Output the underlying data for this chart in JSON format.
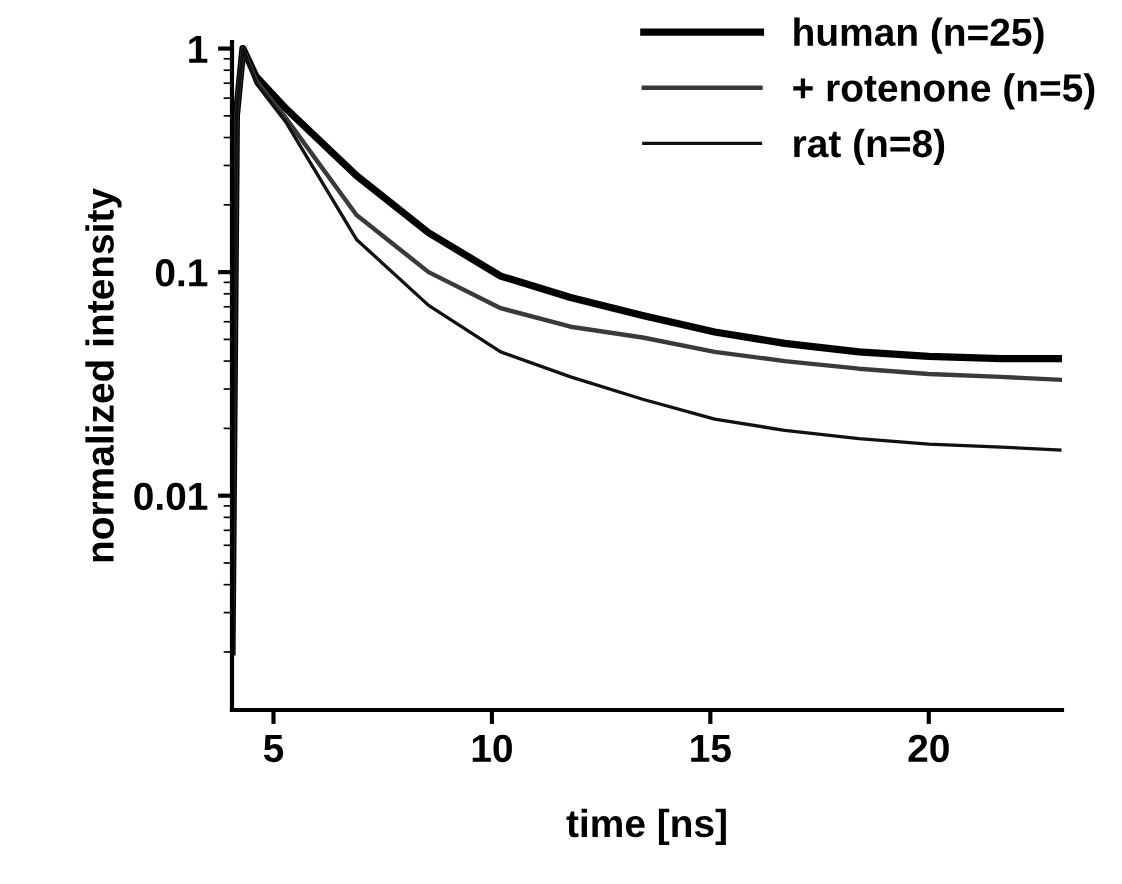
{
  "chart_data": {
    "type": "line",
    "xlabel": "time [ns]",
    "ylabel": "normalized intensity",
    "log": "y",
    "xlim": [
      4.05,
      23.05
    ],
    "ylim": [
      0.0011,
      1.07
    ],
    "xticks": [
      5,
      10,
      15,
      20
    ],
    "yticks": [
      {
        "value": 1,
        "label": "1"
      },
      {
        "value": 0.1,
        "label": "0.1"
      },
      {
        "value": 0.01,
        "label": "0.01"
      }
    ],
    "grid": false,
    "legend": "top right",
    "marker": "none",
    "line_style": "solid",
    "series": [
      {
        "name": "human (n=25)",
        "color": "#000000",
        "x": [
          4.05,
          4.15,
          4.3,
          4.6,
          5.28,
          6.9,
          8.55,
          10.2,
          11.8,
          13.45,
          15.1,
          16.7,
          18.4,
          20.0,
          21.65,
          23.0
        ],
        "values": [
          0.002,
          0.5,
          1.0,
          0.75,
          0.54,
          0.27,
          0.15,
          0.096,
          0.077,
          0.064,
          0.054,
          0.048,
          0.044,
          0.042,
          0.041,
          0.041
        ]
      },
      {
        "name": "+ rotenone (n=5)",
        "color": "#3a3a3a",
        "x": [
          4.05,
          4.15,
          4.3,
          4.6,
          5.28,
          6.9,
          8.55,
          10.2,
          11.8,
          13.45,
          15.1,
          16.7,
          18.4,
          20.0,
          21.65,
          23.0
        ],
        "values": [
          0.002,
          0.5,
          1.0,
          0.72,
          0.49,
          0.18,
          0.1,
          0.069,
          0.057,
          0.051,
          0.044,
          0.04,
          0.037,
          0.035,
          0.034,
          0.033
        ]
      },
      {
        "name": "rat (n=8)",
        "color": "#111111",
        "x": [
          4.05,
          4.15,
          4.3,
          4.6,
          5.28,
          6.9,
          8.55,
          10.2,
          11.8,
          13.45,
          15.1,
          16.7,
          18.4,
          20.0,
          21.65,
          23.0
        ],
        "values": [
          0.002,
          0.5,
          1.0,
          0.7,
          0.47,
          0.14,
          0.071,
          0.044,
          0.034,
          0.027,
          0.022,
          0.0196,
          0.018,
          0.017,
          0.0165,
          0.016
        ]
      }
    ]
  }
}
